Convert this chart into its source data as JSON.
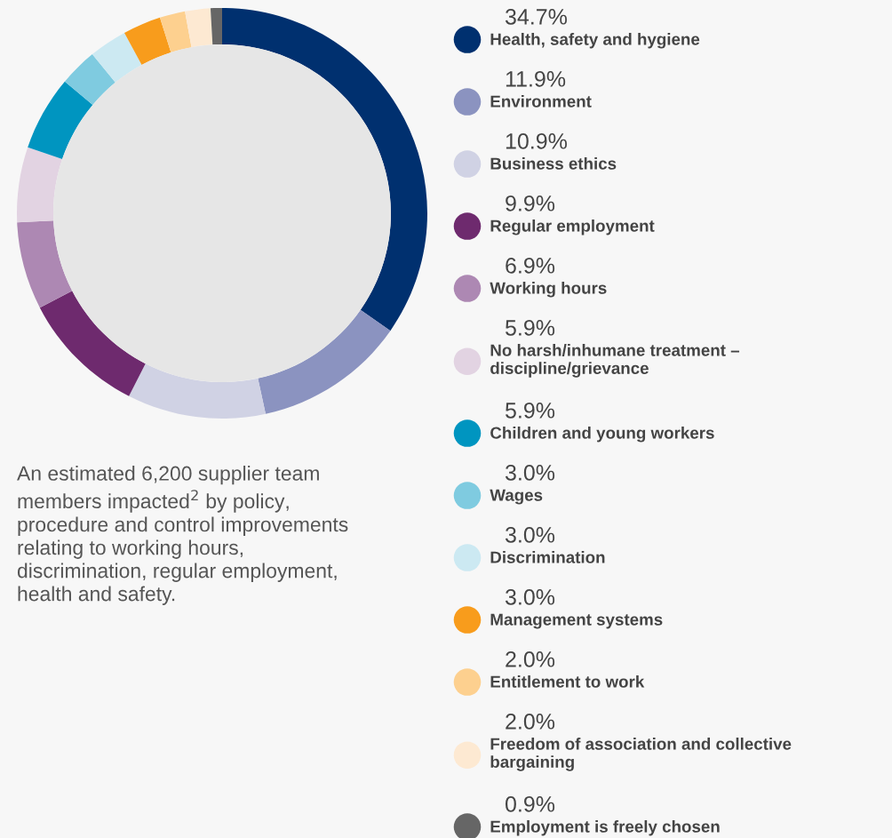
{
  "chart_data": {
    "type": "donut",
    "categories": [
      "Health, safety and hygiene",
      "Environment",
      "Business ethics",
      "Regular employment",
      "Working hours",
      "No harsh/inhumane treatment –\ndiscipline/grievance",
      "Children and young workers",
      "Wages",
      "Discrimination",
      "Management systems",
      "Entitlement to work",
      "Freedom of association and collective\nbargaining",
      "Employment is freely chosen"
    ],
    "values": [
      34.7,
      11.9,
      10.9,
      9.9,
      6.9,
      5.9,
      5.9,
      3.0,
      3.0,
      3.0,
      2.0,
      2.0,
      0.9
    ],
    "value_labels": [
      "34.7%",
      "11.9%",
      "10.9%",
      "9.9%",
      "6.9%",
      "5.9%",
      "5.9%",
      "3.0%",
      "3.0%",
      "3.0%",
      "2.0%",
      "2.0%",
      "0.9%"
    ],
    "colors": [
      "#00306f",
      "#8b93c0",
      "#d0d2e4",
      "#6e2a6e",
      "#ad88b3",
      "#e2d3e2",
      "#0095c0",
      "#7fcbe0",
      "#cce9f2",
      "#f89c1c",
      "#fdd08f",
      "#fde9d2",
      "#666666"
    ],
    "legend": "right",
    "annotations": [
      "An estimated 6,200 supplier team\nmembers impacted$^{2}$ by policy,\nprocedure and control improvements\nrelating to working hours,\ndiscrimination, regular employment,\nhealth and safety."
    ]
  }
}
